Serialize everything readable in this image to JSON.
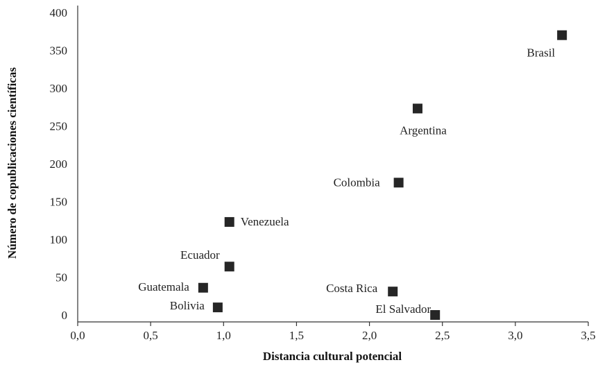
{
  "chart_data": {
    "type": "scatter",
    "xlabel": "Distancia cultural potencial",
    "ylabel": "Número de copublicaciones científicas",
    "xlim": [
      0,
      3.5
    ],
    "ylim": [
      0,
      400
    ],
    "x_ticks": [
      "0,0",
      "0,5",
      "1,0",
      "1,5",
      "2,0",
      "2,5",
      "3,0",
      "3,5"
    ],
    "y_ticks": [
      "0",
      "50",
      "100",
      "150",
      "200",
      "250",
      "300",
      "350",
      "400"
    ],
    "grid": false,
    "legend": "none",
    "marker_color": "#262626",
    "points": [
      {
        "label": "Brasil",
        "x": 3.32,
        "y": 370
      },
      {
        "label": "Argentina",
        "x": 2.33,
        "y": 273
      },
      {
        "label": "Colombia",
        "x": 2.2,
        "y": 175
      },
      {
        "label": "Venezuela",
        "x": 1.04,
        "y": 123
      },
      {
        "label": "Ecuador",
        "x": 1.04,
        "y": 64
      },
      {
        "label": "Guatemala",
        "x": 0.86,
        "y": 36
      },
      {
        "label": "Bolivia",
        "x": 0.96,
        "y": 10
      },
      {
        "label": "Costa Rica",
        "x": 2.16,
        "y": 31
      },
      {
        "label": "El Salvador",
        "x": 2.45,
        "y": 0
      }
    ]
  }
}
